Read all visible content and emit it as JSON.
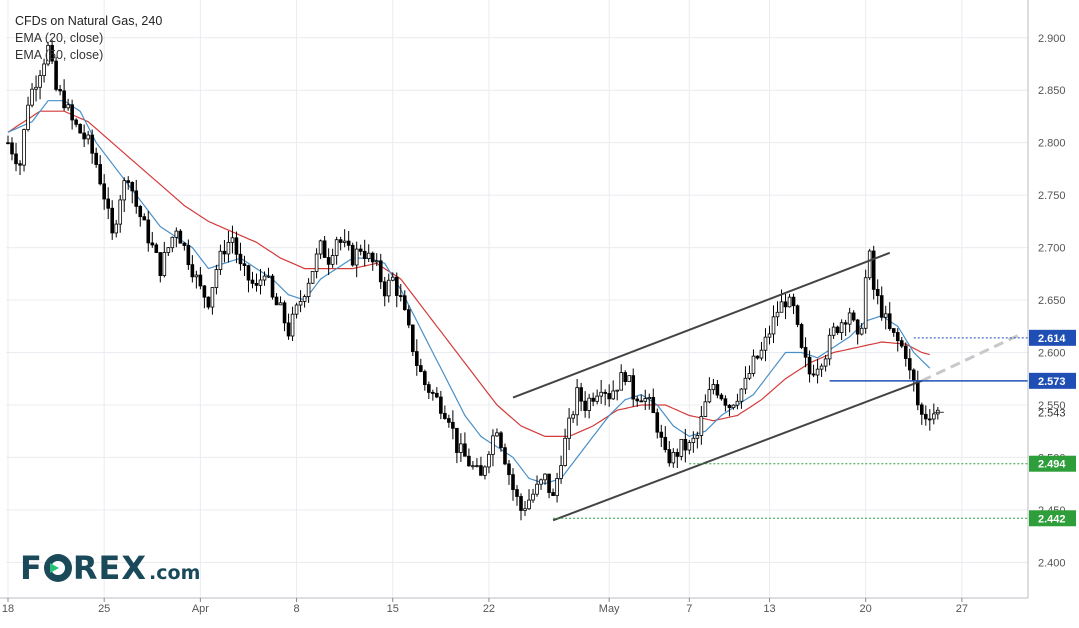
{
  "legend": {
    "title": "CFDs on Natural Gas, 240",
    "ema20": "EMA (20, close)",
    "ema50": "EMA (50, close)"
  },
  "logo": {
    "brand_left": "F",
    "brand_right": "REX",
    "dotcom": ".com"
  },
  "colors": {
    "candle": "#000000",
    "ema20": "#4a90c8",
    "ema50": "#d43a3a",
    "channel": "#444444",
    "support": "#2e9e3a",
    "level_blue": "#1f4fb5",
    "projection": "#c8c8c8",
    "grid": "#e9ecf0",
    "axis_text": "#555555"
  },
  "chart_data": {
    "type": "candlestick",
    "title": "CFDs on Natural Gas, 240",
    "ylim": [
      2.366,
      2.936
    ],
    "y_ticks": [
      2.4,
      2.45,
      2.5,
      2.55,
      2.6,
      2.65,
      2.7,
      2.75,
      2.8,
      2.85,
      2.9
    ],
    "y_tick_labels": [
      "2.400",
      "2.450",
      "2.500",
      "2.550",
      "2.600",
      "2.650",
      "2.700",
      "2.750",
      "2.800",
      "2.850",
      "2.900"
    ],
    "x_ticks": [
      {
        "label": "18",
        "bar": 0
      },
      {
        "label": "25",
        "bar": 24
      },
      {
        "label": "Apr",
        "bar": 48
      },
      {
        "label": "8",
        "bar": 72
      },
      {
        "label": "15",
        "bar": 96
      },
      {
        "label": "22",
        "bar": 120
      },
      {
        "label": "May",
        "bar": 150
      },
      {
        "label": "7",
        "bar": 170
      },
      {
        "label": "13",
        "bar": 190
      },
      {
        "label": "20",
        "bar": 214
      },
      {
        "label": "27",
        "bar": 238
      }
    ],
    "grid": true,
    "bars_total": 255,
    "close_path": [
      [
        0,
        2.8
      ],
      [
        3,
        2.78
      ],
      [
        5,
        2.84
      ],
      [
        7,
        2.86
      ],
      [
        8,
        2.87
      ],
      [
        10,
        2.89
      ],
      [
        12,
        2.85
      ],
      [
        14,
        2.84
      ],
      [
        16,
        2.82
      ],
      [
        20,
        2.8
      ],
      [
        22,
        2.78
      ],
      [
        24,
        2.75
      ],
      [
        26,
        2.71
      ],
      [
        28,
        2.75
      ],
      [
        30,
        2.77
      ],
      [
        32,
        2.74
      ],
      [
        34,
        2.72
      ],
      [
        36,
        2.7
      ],
      [
        38,
        2.68
      ],
      [
        40,
        2.7
      ],
      [
        42,
        2.72
      ],
      [
        44,
        2.7
      ],
      [
        46,
        2.68
      ],
      [
        48,
        2.66
      ],
      [
        50,
        2.65
      ],
      [
        52,
        2.68
      ],
      [
        54,
        2.7
      ],
      [
        56,
        2.71
      ],
      [
        58,
        2.68
      ],
      [
        60,
        2.67
      ],
      [
        62,
        2.66
      ],
      [
        64,
        2.68
      ],
      [
        66,
        2.65
      ],
      [
        68,
        2.64
      ],
      [
        70,
        2.62
      ],
      [
        72,
        2.64
      ],
      [
        74,
        2.66
      ],
      [
        76,
        2.68
      ],
      [
        78,
        2.7
      ],
      [
        80,
        2.69
      ],
      [
        82,
        2.71
      ],
      [
        84,
        2.7
      ],
      [
        86,
        2.69
      ],
      [
        88,
        2.7
      ],
      [
        90,
        2.69
      ],
      [
        92,
        2.68
      ],
      [
        94,
        2.66
      ],
      [
        96,
        2.67
      ],
      [
        98,
        2.65
      ],
      [
        100,
        2.62
      ],
      [
        102,
        2.59
      ],
      [
        104,
        2.57
      ],
      [
        106,
        2.56
      ],
      [
        108,
        2.55
      ],
      [
        110,
        2.54
      ],
      [
        112,
        2.51
      ],
      [
        114,
        2.5
      ],
      [
        116,
        2.49
      ],
      [
        118,
        2.48
      ],
      [
        120,
        2.51
      ],
      [
        122,
        2.53
      ],
      [
        124,
        2.5
      ],
      [
        126,
        2.47
      ],
      [
        128,
        2.45
      ],
      [
        130,
        2.46
      ],
      [
        132,
        2.47
      ],
      [
        134,
        2.48
      ],
      [
        136,
        2.46
      ],
      [
        138,
        2.5
      ],
      [
        140,
        2.53
      ],
      [
        142,
        2.56
      ],
      [
        144,
        2.55
      ],
      [
        146,
        2.56
      ],
      [
        148,
        2.57
      ],
      [
        150,
        2.56
      ],
      [
        152,
        2.57
      ],
      [
        154,
        2.58
      ],
      [
        156,
        2.56
      ],
      [
        158,
        2.56
      ],
      [
        160,
        2.55
      ],
      [
        162,
        2.53
      ],
      [
        164,
        2.5
      ],
      [
        166,
        2.5
      ],
      [
        168,
        2.51
      ],
      [
        170,
        2.51
      ],
      [
        172,
        2.52
      ],
      [
        174,
        2.55
      ],
      [
        176,
        2.57
      ],
      [
        178,
        2.56
      ],
      [
        180,
        2.55
      ],
      [
        182,
        2.56
      ],
      [
        184,
        2.57
      ],
      [
        186,
        2.59
      ],
      [
        188,
        2.6
      ],
      [
        190,
        2.62
      ],
      [
        192,
        2.64
      ],
      [
        194,
        2.65
      ],
      [
        196,
        2.64
      ],
      [
        198,
        2.6
      ],
      [
        200,
        2.58
      ],
      [
        202,
        2.59
      ],
      [
        204,
        2.6
      ],
      [
        206,
        2.62
      ],
      [
        208,
        2.63
      ],
      [
        210,
        2.64
      ],
      [
        212,
        2.61
      ],
      [
        213,
        2.63
      ],
      [
        214,
        2.67
      ],
      [
        215,
        2.69
      ],
      [
        216,
        2.66
      ],
      [
        217,
        2.65
      ],
      [
        218,
        2.64
      ],
      [
        220,
        2.62
      ],
      [
        222,
        2.61
      ],
      [
        224,
        2.6
      ],
      [
        225,
        2.58
      ],
      [
        226,
        2.57
      ],
      [
        227,
        2.55
      ],
      [
        228,
        2.54
      ],
      [
        229,
        2.54
      ],
      [
        230,
        2.543
      ],
      [
        232,
        2.543
      ]
    ],
    "ema20_path": [
      [
        0,
        2.81
      ],
      [
        6,
        2.82
      ],
      [
        10,
        2.84
      ],
      [
        14,
        2.84
      ],
      [
        18,
        2.83
      ],
      [
        22,
        2.8
      ],
      [
        26,
        2.78
      ],
      [
        30,
        2.76
      ],
      [
        34,
        2.74
      ],
      [
        38,
        2.72
      ],
      [
        42,
        2.71
      ],
      [
        46,
        2.7
      ],
      [
        50,
        2.68
      ],
      [
        54,
        2.685
      ],
      [
        58,
        2.69
      ],
      [
        62,
        2.68
      ],
      [
        66,
        2.67
      ],
      [
        70,
        2.655
      ],
      [
        74,
        2.65
      ],
      [
        78,
        2.67
      ],
      [
        82,
        2.68
      ],
      [
        86,
        2.69
      ],
      [
        90,
        2.69
      ],
      [
        94,
        2.685
      ],
      [
        98,
        2.66
      ],
      [
        102,
        2.63
      ],
      [
        106,
        2.6
      ],
      [
        110,
        2.57
      ],
      [
        114,
        2.54
      ],
      [
        118,
        2.52
      ],
      [
        122,
        2.51
      ],
      [
        126,
        2.5
      ],
      [
        130,
        2.48
      ],
      [
        134,
        2.475
      ],
      [
        138,
        2.48
      ],
      [
        142,
        2.5
      ],
      [
        146,
        2.52
      ],
      [
        150,
        2.54
      ],
      [
        154,
        2.555
      ],
      [
        158,
        2.56
      ],
      [
        162,
        2.55
      ],
      [
        166,
        2.53
      ],
      [
        170,
        2.52
      ],
      [
        174,
        2.525
      ],
      [
        178,
        2.54
      ],
      [
        182,
        2.55
      ],
      [
        186,
        2.56
      ],
      [
        190,
        2.58
      ],
      [
        194,
        2.6
      ],
      [
        198,
        2.6
      ],
      [
        202,
        2.595
      ],
      [
        206,
        2.605
      ],
      [
        210,
        2.615
      ],
      [
        214,
        2.63
      ],
      [
        218,
        2.635
      ],
      [
        222,
        2.625
      ],
      [
        226,
        2.6
      ],
      [
        230,
        2.585
      ]
    ],
    "ema50_path": [
      [
        0,
        2.81
      ],
      [
        8,
        2.83
      ],
      [
        14,
        2.83
      ],
      [
        20,
        2.82
      ],
      [
        26,
        2.8
      ],
      [
        32,
        2.78
      ],
      [
        38,
        2.76
      ],
      [
        44,
        2.74
      ],
      [
        50,
        2.725
      ],
      [
        56,
        2.715
      ],
      [
        62,
        2.705
      ],
      [
        68,
        2.69
      ],
      [
        74,
        2.68
      ],
      [
        80,
        2.68
      ],
      [
        86,
        2.68
      ],
      [
        92,
        2.685
      ],
      [
        98,
        2.67
      ],
      [
        104,
        2.64
      ],
      [
        110,
        2.61
      ],
      [
        116,
        2.58
      ],
      [
        122,
        2.55
      ],
      [
        128,
        2.53
      ],
      [
        134,
        2.52
      ],
      [
        140,
        2.52
      ],
      [
        146,
        2.53
      ],
      [
        152,
        2.545
      ],
      [
        158,
        2.55
      ],
      [
        164,
        2.55
      ],
      [
        170,
        2.54
      ],
      [
        176,
        2.535
      ],
      [
        182,
        2.54
      ],
      [
        188,
        2.555
      ],
      [
        194,
        2.575
      ],
      [
        200,
        2.59
      ],
      [
        206,
        2.6
      ],
      [
        212,
        2.605
      ],
      [
        218,
        2.61
      ],
      [
        224,
        2.608
      ],
      [
        228,
        2.6
      ],
      [
        230,
        2.598
      ]
    ],
    "channel": {
      "upper": [
        [
          126,
          2.557
        ],
        [
          220,
          2.695
        ]
      ],
      "lower": [
        [
          136,
          2.44
        ],
        [
          228,
          2.573
        ]
      ]
    },
    "projection": [
      [
        228,
        2.573
      ],
      [
        253,
        2.618
      ]
    ],
    "levels": [
      {
        "value": 2.614,
        "label": "2.614",
        "style": "dotted",
        "color": "#1f4fb5",
        "from_bar": 226,
        "badge": "#1f4fb5"
      },
      {
        "value": 2.573,
        "label": "2.573",
        "style": "solid",
        "color": "#1f4fb5",
        "from_bar": 205,
        "badge": "#1f4fb5"
      },
      {
        "value": 2.494,
        "label": "2.494",
        "style": "dotted",
        "color": "#2e9e3a",
        "from_bar": 170,
        "badge": "#2e9e3a"
      },
      {
        "value": 2.442,
        "label": "2.442",
        "style": "dotted",
        "color": "#2e9e3a",
        "from_bar": 136,
        "badge": "#2e9e3a"
      }
    ],
    "last_price": {
      "value": 2.543,
      "label": "2.543"
    }
  }
}
